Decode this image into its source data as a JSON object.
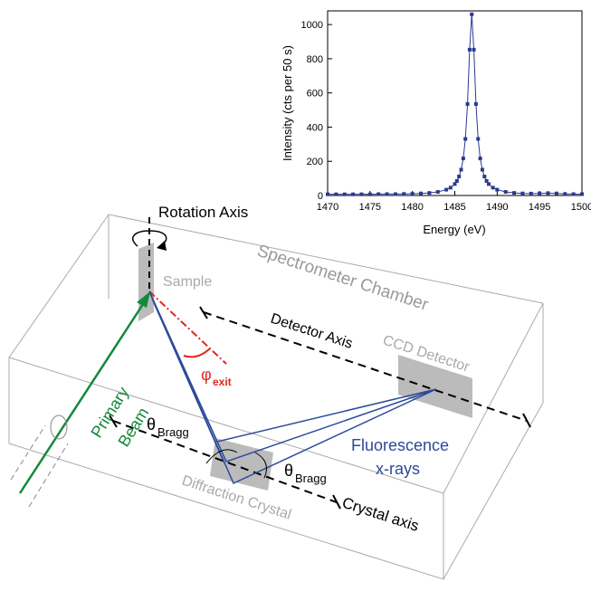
{
  "chart_data": {
    "type": "line",
    "xlabel": "Energy (eV)",
    "ylabel": "Intensity (cts per 50 s)",
    "x": [
      1470,
      1471,
      1472,
      1473,
      1474,
      1475,
      1476,
      1477,
      1478,
      1479,
      1480,
      1481,
      1482,
      1483,
      1484,
      1484.5,
      1485,
      1485.25,
      1485.5,
      1485.75,
      1486,
      1486.25,
      1486.5,
      1486.75,
      1487,
      1487.25,
      1487.5,
      1487.75,
      1488,
      1488.25,
      1488.5,
      1488.75,
      1489,
      1489.5,
      1490,
      1491,
      1492,
      1493,
      1494,
      1495,
      1496,
      1497,
      1498,
      1499,
      1500
    ],
    "values": [
      7,
      7,
      7,
      7,
      7,
      7,
      8,
      8,
      8,
      9,
      10,
      12,
      15,
      21,
      34,
      46,
      67,
      85,
      111,
      151,
      217,
      331,
      535,
      853,
      1060,
      853,
      535,
      331,
      217,
      151,
      111,
      85,
      67,
      46,
      34,
      21,
      15,
      12,
      11,
      12,
      14,
      12,
      9,
      8,
      8
    ],
    "color": "#2b3a8f",
    "xlim": [
      1470,
      1500
    ],
    "xticks": [
      1470,
      1475,
      1480,
      1485,
      1490,
      1495,
      1500
    ],
    "ylim": [
      0,
      1080
    ],
    "yticks": [
      0,
      200,
      400,
      600,
      800,
      1000
    ]
  },
  "labels": {
    "rotation_axis": "Rotation Axis",
    "sample": "Sample",
    "chamber": "Spectrometer Chamber",
    "detector_axis": "Detector Axis",
    "ccd": "CCD Detector",
    "primary": "Primary",
    "beam": "Beam",
    "phi": "φ",
    "phi_sub": "exit",
    "theta1": "θ",
    "theta1_sub": "Bragg",
    "theta2": "θ",
    "theta2_sub": "Bragg",
    "fluorescence": "Fluorescence",
    "xrays": "x-rays",
    "crystal": "Diffraction Crystal",
    "crystal_axis": "Crystal axis"
  }
}
